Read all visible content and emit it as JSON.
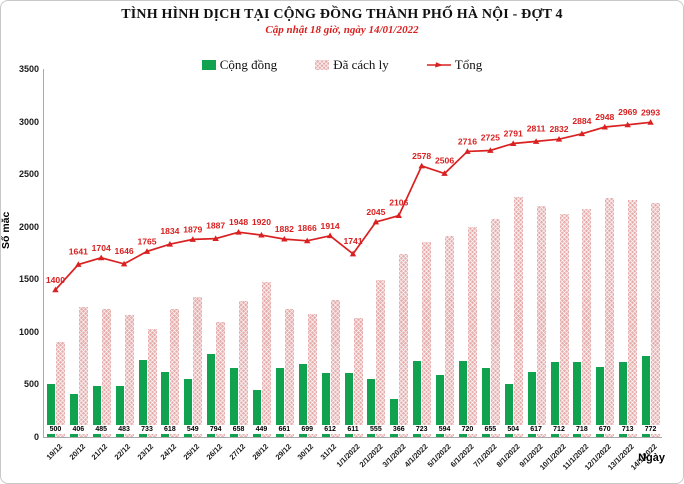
{
  "header": {
    "title": "TÌNH HÌNH DỊCH TẠI CỘNG ĐỒNG THÀNH PHỐ HÀ NỘI - ĐỢT 4",
    "subtitle": "Cập nhật 18 giờ, ngày 14/01/2022"
  },
  "colors": {
    "community_green": "#10a24e",
    "quarantine_pink": "#e5acac",
    "total_red": "#d92121",
    "subtitle_red": "#d92121"
  },
  "chart_data": {
    "type": "bar",
    "title": "TÌNH HÌNH DỊCH TẠI CỘNG ĐỒNG THÀNH PHỐ HÀ NỘI - ĐỢT 4",
    "subtitle": "Cập nhật 18 giờ, ngày 14/01/2022",
    "xlabel": "Ngày",
    "ylabel": "Số mắc",
    "ylim": [
      0,
      3500
    ],
    "yticks": [
      0,
      500,
      1000,
      1500,
      2000,
      2500,
      3000,
      3500
    ],
    "grid": false,
    "legend_position": "top",
    "categories": [
      "19/12",
      "20/12",
      "21/12",
      "22/12",
      "23/12",
      "24/12",
      "25/12",
      "26/12",
      "27/12",
      "28/12",
      "29/12",
      "30/12",
      "31/12",
      "1/1/2022",
      "2/1/2022",
      "3/1/2022",
      "4/1/2022",
      "5/1/2022",
      "6/1/2022",
      "7/1/2022",
      "8/1/2022",
      "9/1/2022",
      "10/1/2022",
      "11/1/2022",
      "12/1/2022",
      "13/1/2022",
      "14/1/2022"
    ],
    "series": [
      {
        "name": "Cộng đồng",
        "type": "bar",
        "color": "#10a24e",
        "labels_shown": true,
        "values": [
          500,
          406,
          485,
          483,
          733,
          618,
          549,
          794,
          658,
          449,
          661,
          699,
          612,
          611,
          555,
          366,
          723,
          594,
          720,
          655,
          504,
          617,
          712,
          718,
          670,
          713,
          772
        ]
      },
      {
        "name": "Đã cách ly",
        "type": "bar",
        "color": "#e5acac",
        "labels_shown": false,
        "values": [
          900,
          1235,
          1219,
          1163,
          1032,
          1216,
          1330,
          1093,
          1290,
          1471,
          1221,
          1167,
          1302,
          1130,
          1490,
          1740,
          1855,
          1912,
          1996,
          2070,
          2287,
          2194,
          2120,
          2166,
          2278,
          2256,
          2221
        ]
      },
      {
        "name": "Tổng",
        "type": "line",
        "color": "#d92121",
        "labels_shown": true,
        "values": [
          1400,
          1641,
          1704,
          1646,
          1765,
          1834,
          1879,
          1887,
          1948,
          1920,
          1882,
          1866,
          1914,
          1741,
          2045,
          2106,
          2578,
          2506,
          2716,
          2725,
          2791,
          2811,
          2832,
          2884,
          2948,
          2969,
          2993
        ]
      }
    ]
  }
}
